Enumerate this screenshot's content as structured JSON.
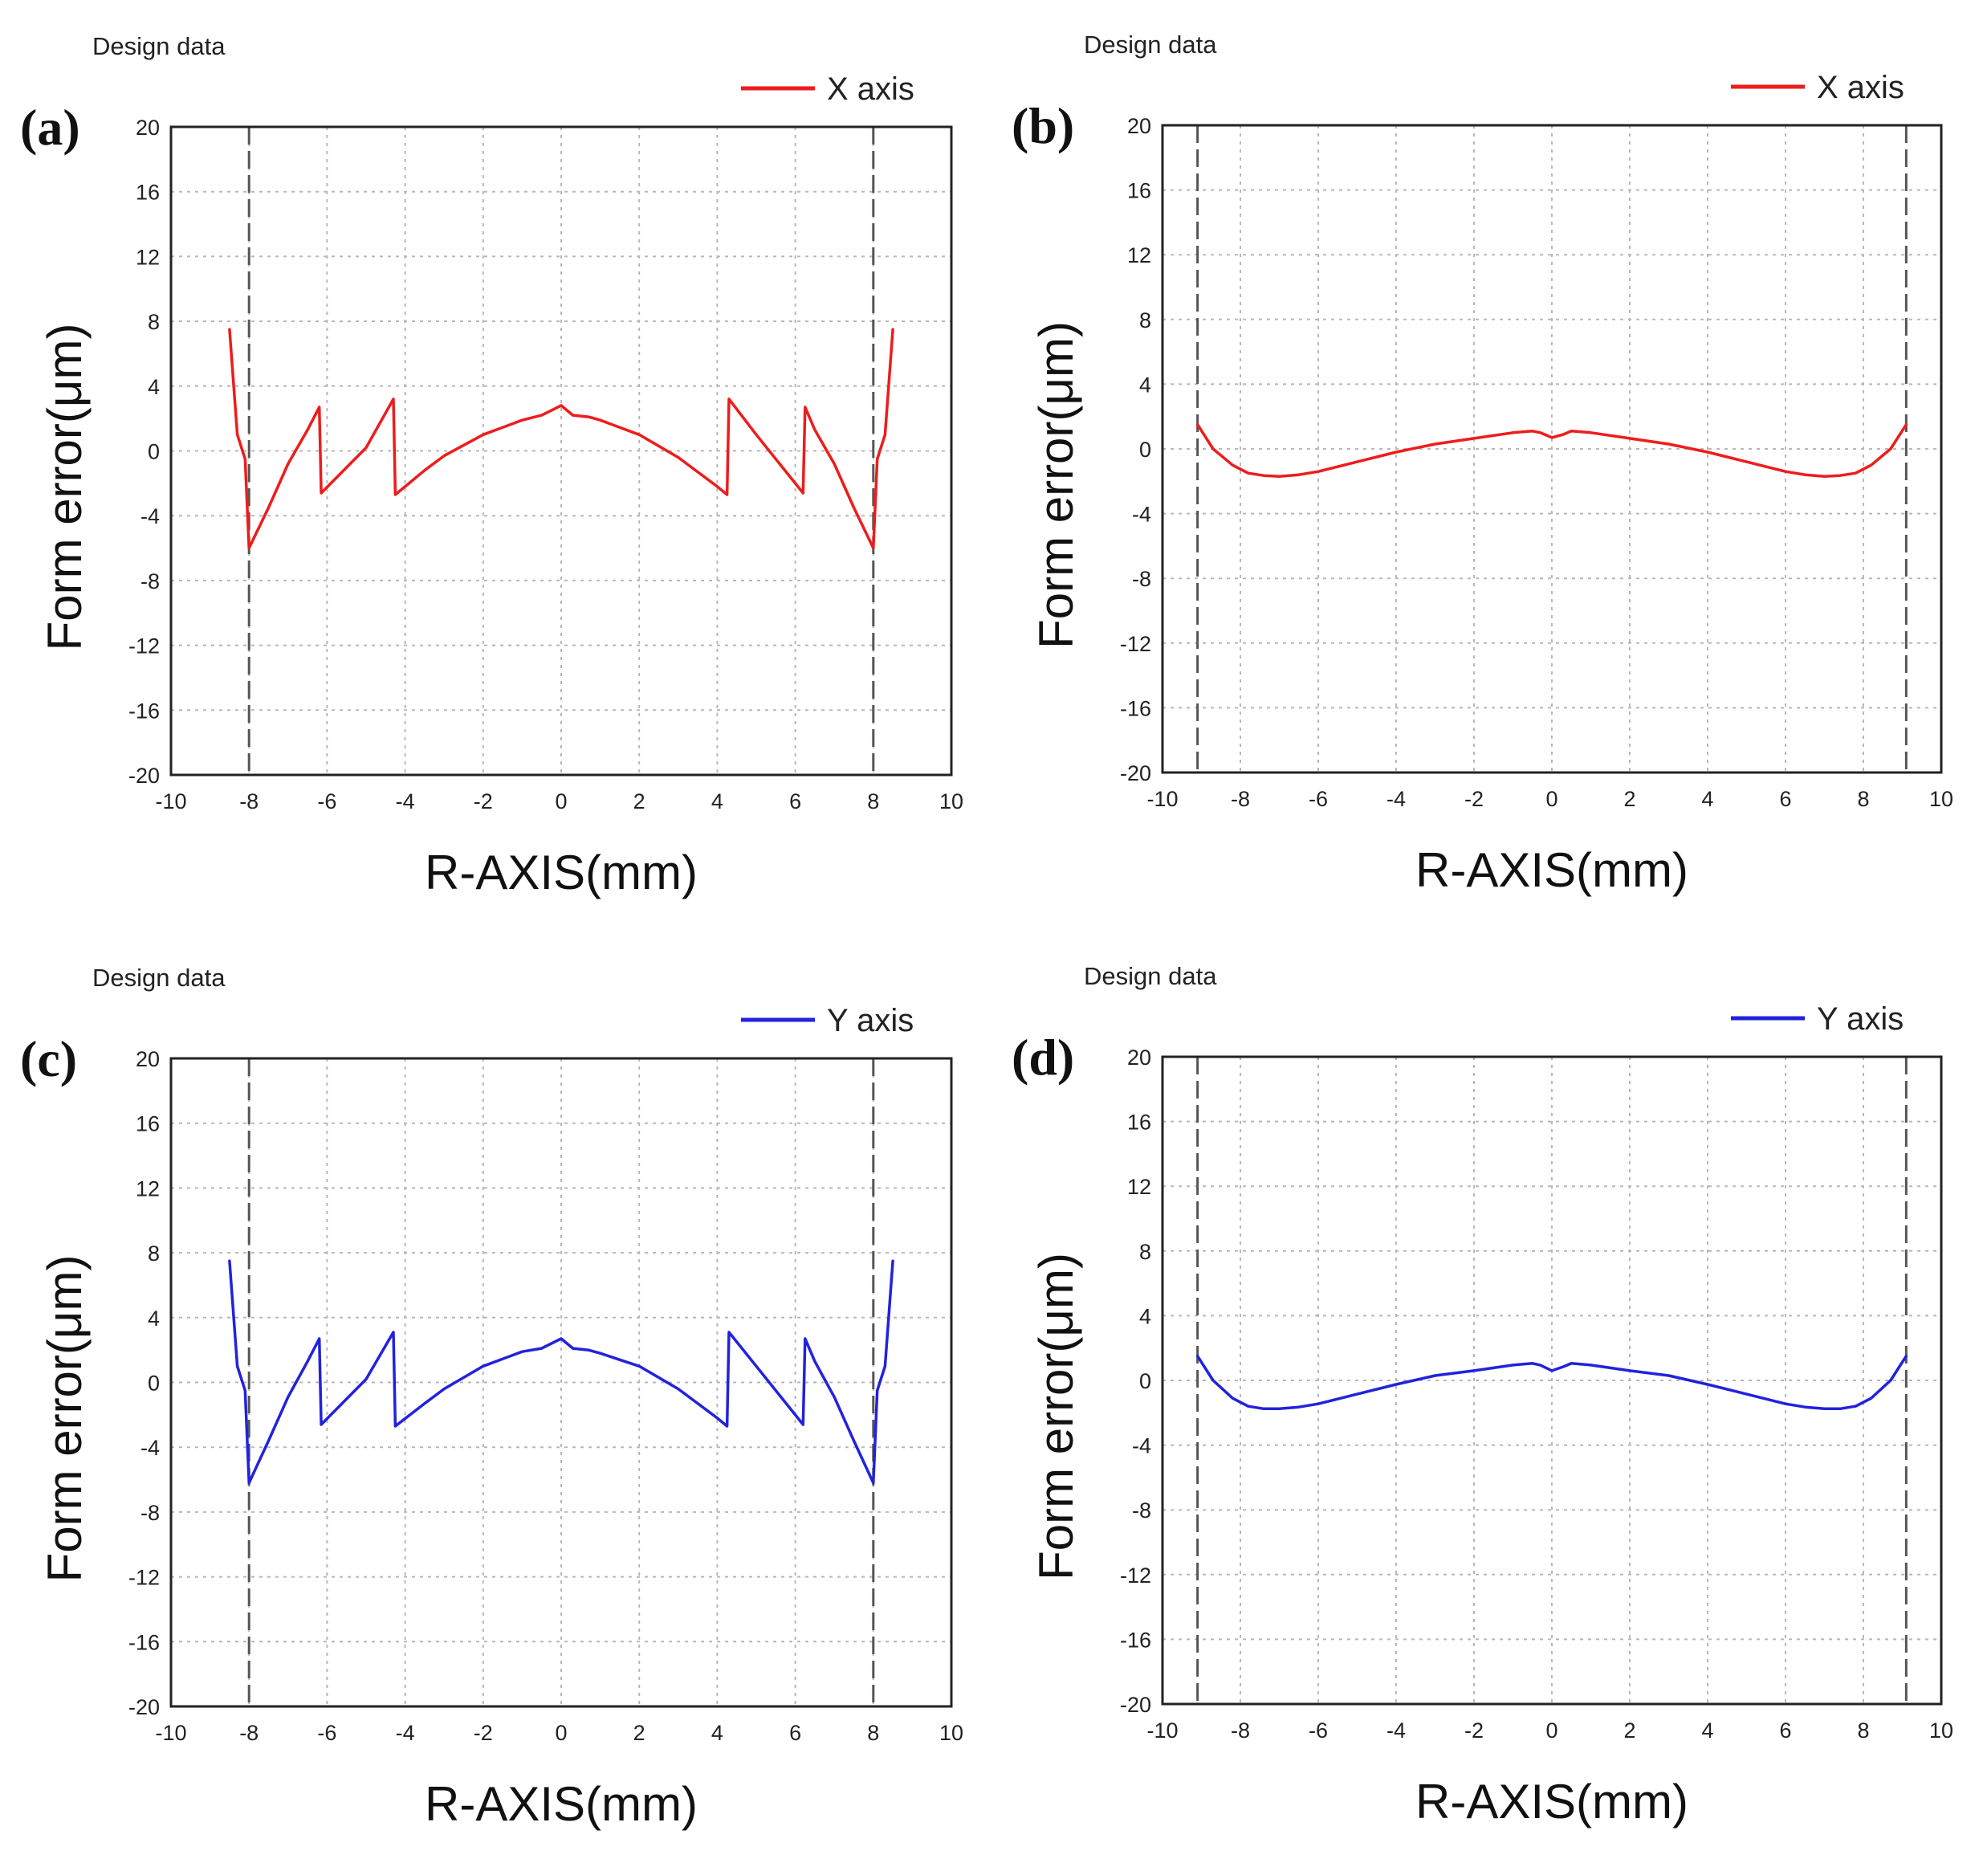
{
  "figure": {
    "colors": {
      "x_axis_series": "#ee1c1c",
      "y_axis_series": "#2222dd"
    }
  },
  "chart_data": [
    {
      "panel_label": "(a)",
      "corner_note": "Design data",
      "type": "line",
      "xlabel": "R-AXIS(mm)",
      "ylabel": "Form error(μm)",
      "xlim": [
        -10,
        10
      ],
      "ylim": [
        -20,
        20
      ],
      "xticks": [
        "-10",
        "-8",
        "-6",
        "-4",
        "-2",
        "0",
        "2",
        "4",
        "6",
        "8",
        "10"
      ],
      "yticks": [
        "20",
        "16",
        "12",
        "8",
        "4",
        "0",
        "-4",
        "-8",
        "-12",
        "-16",
        "-20"
      ],
      "grid": true,
      "legend_position": "top-right",
      "markers": [
        -8,
        8
      ],
      "series": [
        {
          "name": "X axis",
          "color": "#ee1c1c",
          "x": [
            -8.5,
            -8.3,
            -8.1,
            -8.0,
            -7.5,
            -7.0,
            -6.5,
            -6.2,
            -6.15,
            -5.0,
            -4.3,
            -4.25,
            -3.5,
            -3.0,
            -2.0,
            -1.0,
            -0.5,
            0.0,
            0.3,
            0.7,
            1.0,
            2.0,
            3.0,
            4.0,
            4.25,
            4.3,
            5.0,
            6.2,
            6.25,
            6.5,
            7.0,
            7.5,
            8.0,
            8.1,
            8.3,
            8.5
          ],
          "y": [
            7.5,
            1.0,
            -0.5,
            -6.0,
            -3.5,
            -0.8,
            1.3,
            2.7,
            -2.6,
            0.2,
            3.2,
            -2.7,
            -1.2,
            -0.3,
            1.0,
            1.9,
            2.2,
            2.8,
            2.2,
            2.1,
            1.9,
            1.0,
            -0.4,
            -2.2,
            -2.7,
            3.2,
            1.0,
            -2.6,
            2.7,
            1.3,
            -0.8,
            -3.5,
            -6.0,
            -0.5,
            1.0,
            7.5
          ]
        }
      ]
    },
    {
      "panel_label": "(b)",
      "corner_note": "Design data",
      "type": "line",
      "xlabel": "R-AXIS(mm)",
      "ylabel": "Form error(μm)",
      "xlim": [
        -10,
        10
      ],
      "ylim": [
        -20,
        20
      ],
      "xticks": [
        "-10",
        "-8",
        "-6",
        "-4",
        "-2",
        "0",
        "2",
        "4",
        "6",
        "8",
        "10"
      ],
      "yticks": [
        "20",
        "16",
        "12",
        "8",
        "4",
        "0",
        "-4",
        "-8",
        "-12",
        "-16",
        "-20"
      ],
      "grid": true,
      "legend_position": "top-right",
      "markers": [
        -9.1,
        9.1
      ],
      "series": [
        {
          "name": "X axis",
          "color": "#ee1c1c",
          "x": [
            -9.1,
            -8.7,
            -8.2,
            -7.8,
            -7.4,
            -7.0,
            -6.5,
            -6.0,
            -5.0,
            -4.0,
            -3.0,
            -2.0,
            -1.0,
            -0.5,
            -0.3,
            0.0,
            0.3,
            0.5,
            1.0,
            2.0,
            3.0,
            4.0,
            5.0,
            6.0,
            6.5,
            7.0,
            7.4,
            7.8,
            8.2,
            8.7,
            9.1
          ],
          "y": [
            1.5,
            0.0,
            -1.0,
            -1.5,
            -1.65,
            -1.7,
            -1.6,
            -1.4,
            -0.8,
            -0.2,
            0.3,
            0.65,
            1.0,
            1.1,
            1.0,
            0.7,
            0.9,
            1.1,
            1.0,
            0.65,
            0.3,
            -0.2,
            -0.8,
            -1.4,
            -1.6,
            -1.7,
            -1.65,
            -1.5,
            -1.0,
            0.0,
            1.5
          ]
        }
      ]
    },
    {
      "panel_label": "(c)",
      "corner_note": "Design data",
      "type": "line",
      "xlabel": "R-AXIS(mm)",
      "ylabel": "Form error(μm)",
      "xlim": [
        -10,
        10
      ],
      "ylim": [
        -20,
        20
      ],
      "xticks": [
        "-10",
        "-8",
        "-6",
        "-4",
        "-2",
        "0",
        "2",
        "4",
        "6",
        "8",
        "10"
      ],
      "yticks": [
        "20",
        "16",
        "12",
        "8",
        "4",
        "0",
        "-4",
        "-8",
        "-12",
        "-16",
        "-20"
      ],
      "grid": true,
      "legend_position": "top-right",
      "markers": [
        -8,
        8
      ],
      "series": [
        {
          "name": "Y axis",
          "color": "#2222dd",
          "x": [
            -8.5,
            -8.3,
            -8.1,
            -8.0,
            -7.5,
            -7.0,
            -6.5,
            -6.2,
            -6.15,
            -5.0,
            -4.3,
            -4.25,
            -3.5,
            -3.0,
            -2.0,
            -1.0,
            -0.5,
            0.0,
            0.3,
            0.7,
            1.0,
            2.0,
            3.0,
            4.0,
            4.25,
            4.3,
            5.0,
            6.2,
            6.25,
            6.5,
            7.0,
            7.5,
            8.0,
            8.1,
            8.3,
            8.5
          ],
          "y": [
            7.5,
            1.0,
            -0.5,
            -6.2,
            -3.6,
            -0.9,
            1.3,
            2.7,
            -2.6,
            0.2,
            3.1,
            -2.7,
            -1.3,
            -0.4,
            1.0,
            1.9,
            2.1,
            2.7,
            2.1,
            2.0,
            1.8,
            1.0,
            -0.4,
            -2.2,
            -2.7,
            3.1,
            1.0,
            -2.6,
            2.7,
            1.3,
            -0.9,
            -3.6,
            -6.2,
            -0.5,
            1.0,
            7.5
          ]
        }
      ]
    },
    {
      "panel_label": "(d)",
      "corner_note": "Design data",
      "type": "line",
      "xlabel": "R-AXIS(mm)",
      "ylabel": "Form error(μm)",
      "xlim": [
        -10,
        10
      ],
      "ylim": [
        -20,
        20
      ],
      "xticks": [
        "-10",
        "-8",
        "-6",
        "-4",
        "-2",
        "0",
        "2",
        "4",
        "6",
        "8",
        "10"
      ],
      "yticks": [
        "20",
        "16",
        "12",
        "8",
        "4",
        "0",
        "-4",
        "-8",
        "-12",
        "-16",
        "-20"
      ],
      "grid": true,
      "legend_position": "top-right",
      "markers": [
        -9.1,
        9.1
      ],
      "series": [
        {
          "name": "Y axis",
          "color": "#2222dd",
          "x": [
            -9.1,
            -8.7,
            -8.2,
            -7.8,
            -7.4,
            -7.0,
            -6.5,
            -6.0,
            -5.0,
            -4.0,
            -3.0,
            -2.0,
            -1.0,
            -0.5,
            -0.3,
            0.0,
            0.3,
            0.5,
            1.0,
            2.0,
            3.0,
            4.0,
            5.0,
            6.0,
            6.5,
            7.0,
            7.4,
            7.8,
            8.2,
            8.7,
            9.1
          ],
          "y": [
            1.5,
            0.0,
            -1.1,
            -1.6,
            -1.75,
            -1.75,
            -1.65,
            -1.45,
            -0.85,
            -0.25,
            0.3,
            0.6,
            0.95,
            1.05,
            0.95,
            0.6,
            0.85,
            1.05,
            0.95,
            0.6,
            0.3,
            -0.25,
            -0.85,
            -1.45,
            -1.65,
            -1.75,
            -1.75,
            -1.6,
            -1.1,
            0.0,
            1.5
          ]
        }
      ]
    }
  ]
}
